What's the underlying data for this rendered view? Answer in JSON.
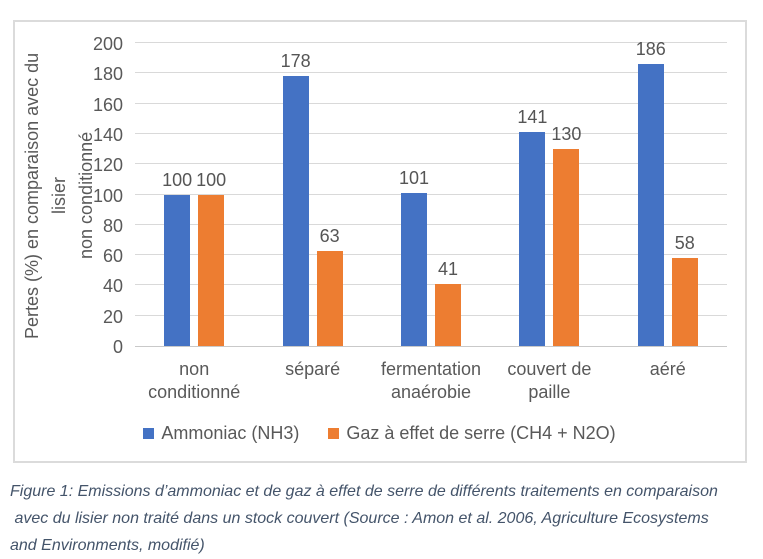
{
  "chart_data": {
    "type": "bar",
    "title": "",
    "categories": [
      "non\nconditionné",
      "séparé",
      "fermentation\nanaérobie",
      "couvert de\npaille",
      "aéré"
    ],
    "series": [
      {
        "name": "Ammoniac (NH3)",
        "color": "#4472C4",
        "values": [
          100,
          178,
          101,
          141,
          186
        ]
      },
      {
        "name": "Gaz à effet de serre (CH4 + N2O)",
        "color": "#ED7D31",
        "values": [
          100,
          63,
          41,
          130,
          58
        ]
      }
    ],
    "xlabel": "",
    "ylabel": "Pertes (%) en comparaison avec du lisier\nnon conditionné",
    "ylim": [
      0,
      200
    ],
    "yticks": [
      0,
      20,
      40,
      60,
      80,
      100,
      120,
      140,
      160,
      180,
      200
    ],
    "grid": true,
    "data_labels": true,
    "legend_position": "bottom"
  },
  "caption": {
    "text": "Figure 1: Emissions d’ammoniac et de gaz à effet de serre de différents traitements en comparaison\n avec du lisier non traité dans un stock couvert (Source : Amon et al. 2006, Agriculture Ecosystems\nand Environments, modifié)"
  },
  "palette": {
    "grid": "#D9D9D9",
    "axis_text": "#595959",
    "data_label_text": "#555555",
    "caption_text": "#44546A",
    "chart_border": "#DBDBDB"
  }
}
